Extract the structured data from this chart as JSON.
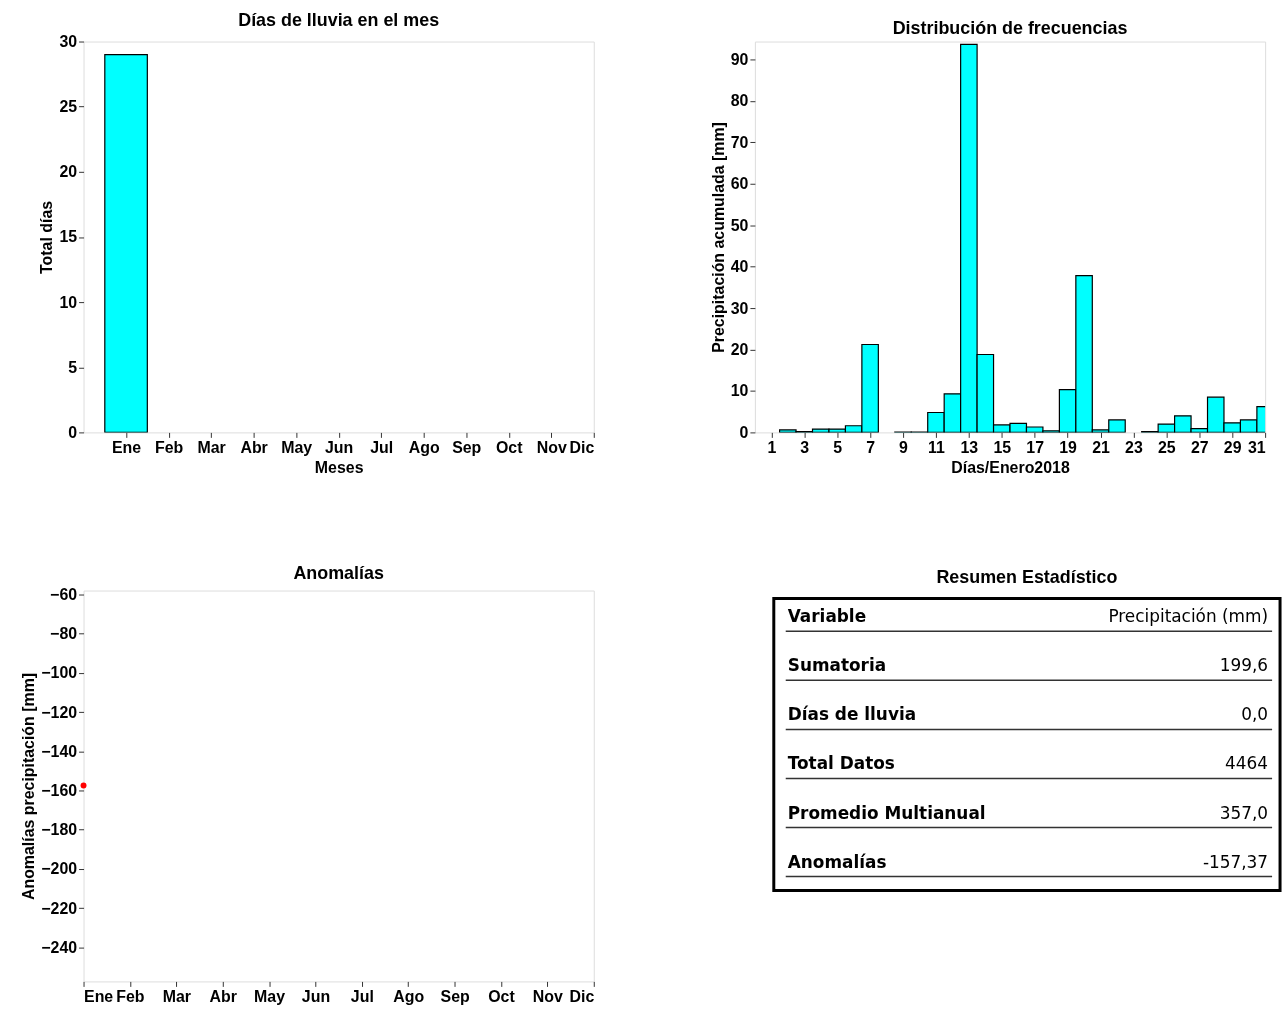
{
  "chart_data": [
    {
      "type": "bar",
      "title": "Días de lluvia en el mes",
      "xlabel": "Meses",
      "ylabel": "Total días",
      "categories": [
        "Ene",
        "Feb",
        "Mar",
        "Abr",
        "May",
        "Jun",
        "Jul",
        "Ago",
        "Sep",
        "Oct",
        "Nov",
        "Dic"
      ],
      "values": [
        29,
        null,
        null,
        null,
        null,
        null,
        null,
        null,
        null,
        null,
        null,
        null
      ],
      "color": "#00ffff",
      "ylim": [
        0,
        30
      ],
      "yticks": [
        0,
        5,
        10,
        15,
        20,
        25,
        30
      ]
    },
    {
      "type": "bar",
      "title": "Distribución de frecuencias",
      "xlabel": "Días/Enero2018",
      "ylabel": "Precipitación acumulada [mm]",
      "x": [
        2,
        3,
        4,
        5,
        6,
        7,
        8,
        9,
        10,
        11,
        12,
        13,
        14,
        15,
        16,
        17,
        18,
        19,
        20,
        21,
        22,
        23,
        24,
        25,
        26,
        27,
        28,
        29,
        30,
        31
      ],
      "values": [
        0.6,
        0.2,
        0.8,
        0.8,
        1.6,
        21.2,
        null,
        0.1,
        0.1,
        4.8,
        9.3,
        93.6,
        18.8,
        1.8,
        2.2,
        1.3,
        0.4,
        10.3,
        37.8,
        0.6,
        3.0,
        null,
        0.2,
        2.0,
        4.0,
        0.9,
        8.5,
        2.3,
        3.0,
        6.2
      ],
      "color": "#00ffff",
      "xlim": [
        0,
        31
      ],
      "xticks": [
        1,
        3,
        5,
        7,
        9,
        11,
        13,
        15,
        17,
        19,
        21,
        23,
        25,
        27,
        29,
        31
      ],
      "ylim": [
        0,
        94.3
      ],
      "yticks": [
        0,
        10,
        20,
        30,
        40,
        50,
        60,
        70,
        80,
        90
      ]
    },
    {
      "type": "scatter",
      "title": "Anomalías",
      "ylabel": "Anomalías precipitación [mm]",
      "categories": [
        "Ene",
        "Feb",
        "Mar",
        "Abr",
        "May",
        "Jun",
        "Jul",
        "Ago",
        "Sep",
        "Oct",
        "Nov",
        "Dic"
      ],
      "values": [
        -157.4,
        null,
        null,
        null,
        null,
        null,
        null,
        null,
        null,
        null,
        null,
        null
      ],
      "color": "#ff0000",
      "marker": "circle",
      "ylim": [
        -257.4,
        -58
      ],
      "yticks": [
        -240,
        -220,
        -200,
        -180,
        -160,
        -140,
        -120,
        -100,
        -80,
        -60
      ]
    },
    {
      "type": "other",
      "title": "Resumen Estadístico",
      "categories": [
        "Variable",
        "Sumatoria",
        "Días de lluvia",
        "Total Datos",
        "Promedio Multianual",
        "Anomalías"
      ],
      "value_labels": [
        "Precipitación (mm)",
        "199,6",
        "0,0",
        "4464",
        "357,0",
        "-157,37"
      ]
    }
  ]
}
